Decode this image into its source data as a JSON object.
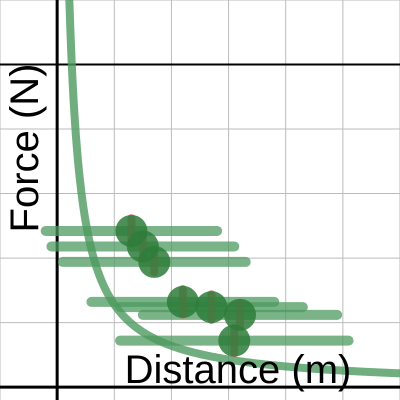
{
  "chart_data": {
    "type": "scatter",
    "xlabel": "Distance (m)",
    "ylabel": "Force (N)",
    "xlim": [
      -0.5,
      3.0
    ],
    "ylim": [
      -0.1,
      3.0
    ],
    "grid": true,
    "grid_step": 0.5,
    "colors": {
      "fit": "#4c9a5f",
      "point": "#2e7d3a",
      "error_y": "#d06060",
      "error_x": "#4c9a5f"
    },
    "fit_curve": {
      "formula": "F = k / r",
      "k": 0.32
    },
    "points": [
      {
        "x": 0.65,
        "y": 1.21,
        "x_err": 0.75,
        "y_err": 0.1
      },
      {
        "x": 0.75,
        "y": 1.09,
        "x_err": 0.8,
        "y_err": 0.09
      },
      {
        "x": 0.85,
        "y": 0.97,
        "x_err": 0.8,
        "y_err": 0.08
      },
      {
        "x": 1.1,
        "y": 0.66,
        "x_err": 0.8,
        "y_err": 0.1
      },
      {
        "x": 1.35,
        "y": 0.62,
        "x_err": 0.8,
        "y_err": 0.1
      },
      {
        "x": 1.55,
        "y": 0.36,
        "x_err": 1.0,
        "y_err": 0.1
      },
      {
        "x": 1.6,
        "y": 0.56,
        "x_err": 0.85,
        "y_err": 0.09
      }
    ]
  }
}
